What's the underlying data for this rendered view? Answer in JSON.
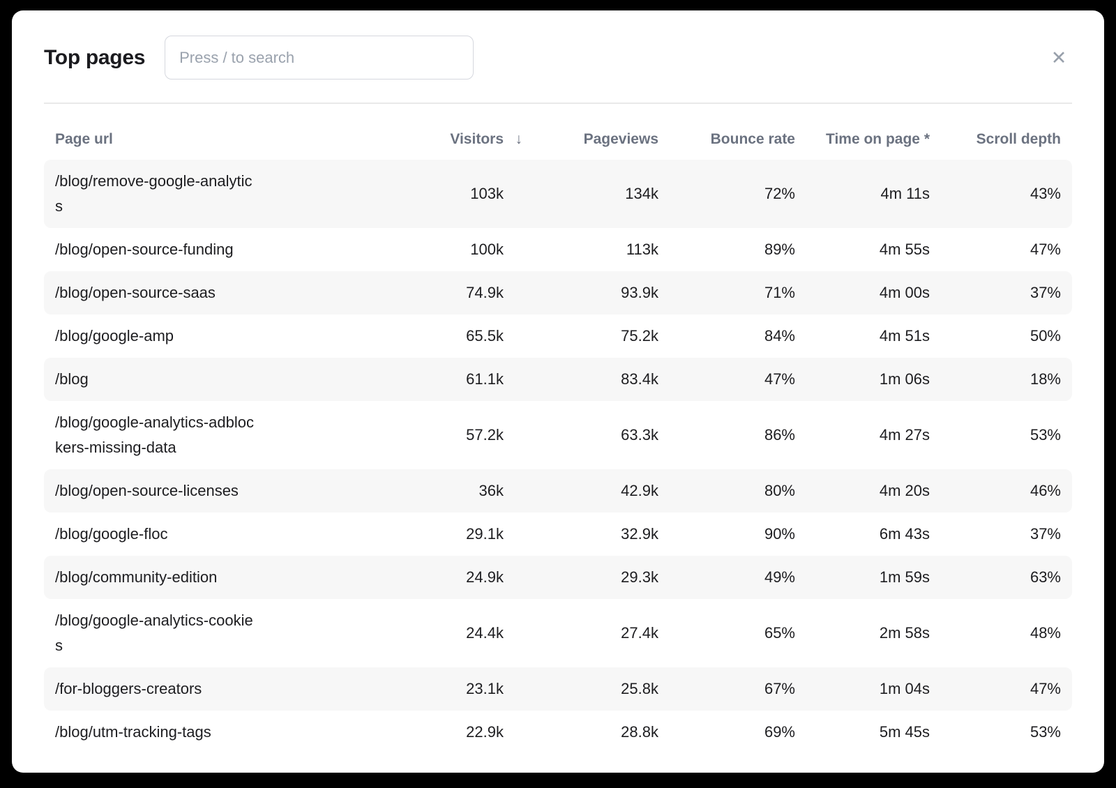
{
  "modal": {
    "title": "Top pages",
    "search": {
      "placeholder": "Press / to search",
      "value": ""
    }
  },
  "icons": {
    "close": "✕",
    "sort_desc": "↓"
  },
  "table": {
    "columns": [
      {
        "label": "Page url"
      },
      {
        "label": "Visitors",
        "sorted": "desc"
      },
      {
        "label": "Pageviews"
      },
      {
        "label": "Bounce rate"
      },
      {
        "label": "Time on page *"
      },
      {
        "label": "Scroll depth"
      }
    ],
    "rows": [
      {
        "url": "/blog/remove-google-analytics",
        "visitors": "103k",
        "pageviews": "134k",
        "bounce_rate": "72%",
        "time_on_page": "4m 11s",
        "scroll_depth": "43%"
      },
      {
        "url": "/blog/open-source-funding",
        "visitors": "100k",
        "pageviews": "113k",
        "bounce_rate": "89%",
        "time_on_page": "4m 55s",
        "scroll_depth": "47%"
      },
      {
        "url": "/blog/open-source-saas",
        "visitors": "74.9k",
        "pageviews": "93.9k",
        "bounce_rate": "71%",
        "time_on_page": "4m 00s",
        "scroll_depth": "37%"
      },
      {
        "url": "/blog/google-amp",
        "visitors": "65.5k",
        "pageviews": "75.2k",
        "bounce_rate": "84%",
        "time_on_page": "4m 51s",
        "scroll_depth": "50%"
      },
      {
        "url": "/blog",
        "visitors": "61.1k",
        "pageviews": "83.4k",
        "bounce_rate": "47%",
        "time_on_page": "1m 06s",
        "scroll_depth": "18%"
      },
      {
        "url": "/blog/google-analytics-adblockers-missing-data",
        "visitors": "57.2k",
        "pageviews": "63.3k",
        "bounce_rate": "86%",
        "time_on_page": "4m 27s",
        "scroll_depth": "53%"
      },
      {
        "url": "/blog/open-source-licenses",
        "visitors": "36k",
        "pageviews": "42.9k",
        "bounce_rate": "80%",
        "time_on_page": "4m 20s",
        "scroll_depth": "46%"
      },
      {
        "url": "/blog/google-floc",
        "visitors": "29.1k",
        "pageviews": "32.9k",
        "bounce_rate": "90%",
        "time_on_page": "6m 43s",
        "scroll_depth": "37%"
      },
      {
        "url": "/blog/community-edition",
        "visitors": "24.9k",
        "pageviews": "29.3k",
        "bounce_rate": "49%",
        "time_on_page": "1m 59s",
        "scroll_depth": "63%"
      },
      {
        "url": "/blog/google-analytics-cookies",
        "visitors": "24.4k",
        "pageviews": "27.4k",
        "bounce_rate": "65%",
        "time_on_page": "2m 58s",
        "scroll_depth": "48%"
      },
      {
        "url": "/for-bloggers-creators",
        "visitors": "23.1k",
        "pageviews": "25.8k",
        "bounce_rate": "67%",
        "time_on_page": "1m 04s",
        "scroll_depth": "47%"
      },
      {
        "url": "/blog/utm-tracking-tags",
        "visitors": "22.9k",
        "pageviews": "28.8k",
        "bounce_rate": "69%",
        "time_on_page": "5m 45s",
        "scroll_depth": "53%"
      }
    ]
  },
  "colors": {
    "backdrop": "#000000",
    "modal_bg": "#ffffff",
    "stripe": "#f7f7f7",
    "divider": "#e9e9e9",
    "title_text": "#1b1b1f",
    "header_text": "#6b7280",
    "body_text": "#1d1d20",
    "placeholder": "#9aa2ad",
    "input_border": "#d5d7de",
    "close_icon": "#98a0ab"
  }
}
